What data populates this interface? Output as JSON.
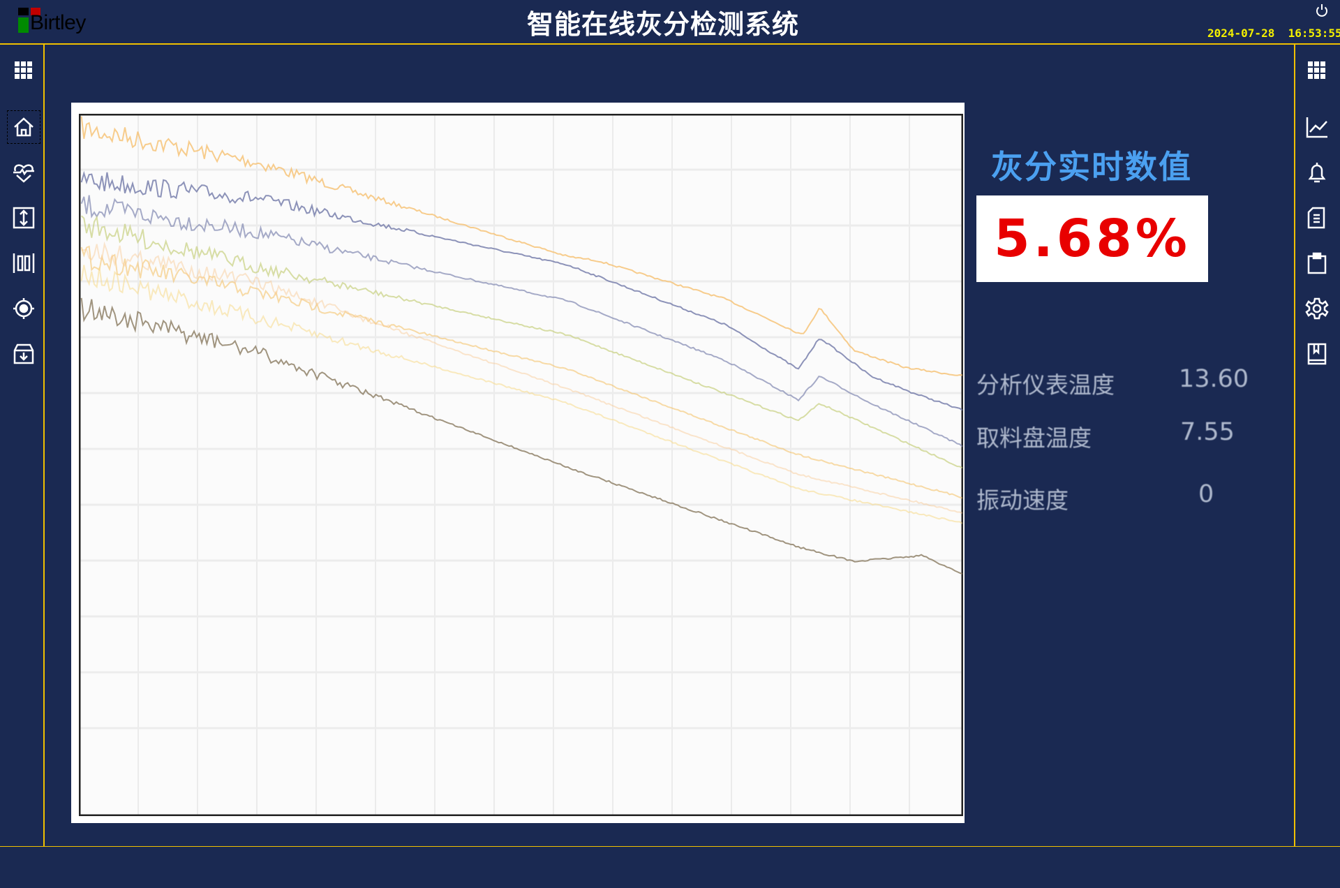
{
  "header": {
    "logo_text": "Birtley",
    "title": "智能在线灰分检测系统",
    "date": "2024-07-28",
    "time": "16:53:55"
  },
  "left_sidebar": {
    "icons": [
      "grid-menu-icon",
      "home-icon",
      "heart-pulse-icon",
      "vertical-arrows-icon",
      "barcode-icon",
      "target-icon",
      "archive-download-icon"
    ]
  },
  "right_sidebar": {
    "icons": [
      "grid-menu-icon",
      "line-chart-icon",
      "bell-icon",
      "document-icon",
      "clipboard-icon",
      "gear-icon",
      "book-icon"
    ]
  },
  "realtime": {
    "title": "灰分实时数值",
    "value": "5.68%"
  },
  "readings": [
    {
      "label": "分析仪表温度",
      "value": "13.60"
    },
    {
      "label": "取料盘温度",
      "value": "7.55"
    },
    {
      "label": "振动速度",
      "value": "0"
    }
  ],
  "colors": {
    "background": "#1a2952",
    "accent_line": "#f0c000",
    "title_blue": "#4ba0f0",
    "value_red": "#e80000",
    "datetime_yellow": "#f4f000"
  }
}
